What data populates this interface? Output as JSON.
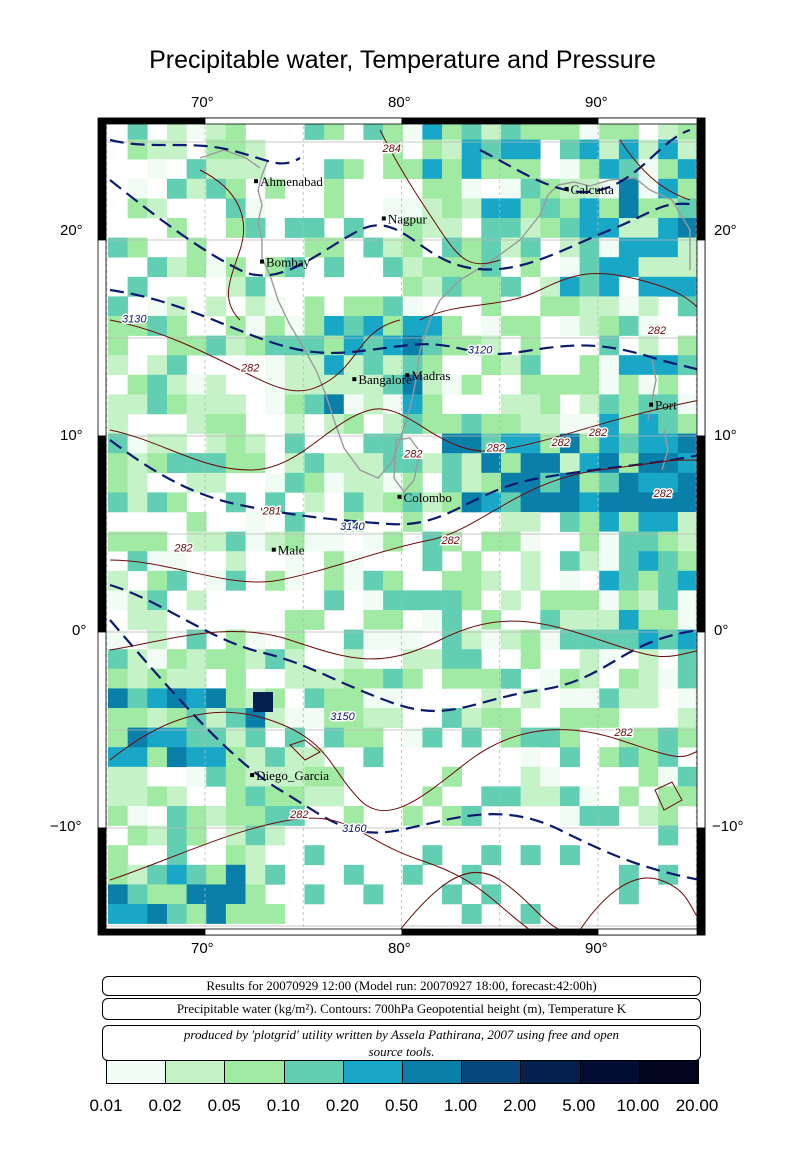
{
  "title": "Precipitable water, Temperature and Pressure",
  "axes": {
    "lon_labels": [
      "70°",
      "80°",
      "90°"
    ],
    "lat_labels": [
      "20°",
      "10°",
      "0°",
      "−10°"
    ]
  },
  "cities": [
    {
      "name": "Ahmenabad",
      "lon": 72.6,
      "lat": 23.0
    },
    {
      "name": "Nagpur",
      "lon": 79.1,
      "lat": 21.1
    },
    {
      "name": "Calcutta",
      "lon": 88.4,
      "lat": 22.6
    },
    {
      "name": "Bombay",
      "lon": 72.9,
      "lat": 18.9
    },
    {
      "name": "Bangalore",
      "lon": 77.6,
      "lat": 12.9
    },
    {
      "name": "Madras",
      "lon": 80.3,
      "lat": 13.1
    },
    {
      "name": "Port",
      "lon": 92.7,
      "lat": 11.6
    },
    {
      "name": "Colombo",
      "lon": 79.9,
      "lat": 6.9
    },
    {
      "name": "Male",
      "lon": 73.5,
      "lat": 4.2
    },
    {
      "name": "Diego_Garcia",
      "lon": 72.4,
      "lat": -7.3
    }
  ],
  "contour_labels": [
    {
      "text": "3130",
      "lon": 66.4,
      "lat": 15.8
    },
    {
      "text": "3120",
      "lon": 84.0,
      "lat": 14.2
    },
    {
      "text": "3140",
      "lon": 77.5,
      "lat": 5.2
    },
    {
      "text": "3150",
      "lon": 77.0,
      "lat": -4.5
    },
    {
      "text": "3160",
      "lon": 77.6,
      "lat": -10.2
    },
    {
      "text": "282",
      "lon": 80.6,
      "lat": 8.9
    },
    {
      "text": "282",
      "lon": 84.8,
      "lat": 9.2
    },
    {
      "text": "282",
      "lon": 88.1,
      "lat": 9.5
    },
    {
      "text": "282",
      "lon": 90.0,
      "lat": 10.0
    },
    {
      "text": "282",
      "lon": 93.0,
      "lat": 15.2
    },
    {
      "text": "282",
      "lon": 93.3,
      "lat": 6.9
    },
    {
      "text": "282",
      "lon": 82.5,
      "lat": 4.5
    },
    {
      "text": "282",
      "lon": 68.9,
      "lat": 4.1
    },
    {
      "text": "282",
      "lon": 91.3,
      "lat": -5.3
    },
    {
      "text": "282",
      "lon": 74.8,
      "lat": -9.5
    },
    {
      "text": "282",
      "lon": 72.3,
      "lat": 13.3
    },
    {
      "text": "284",
      "lon": 79.5,
      "lat": 24.5
    },
    {
      "text": "281",
      "lon": 73.4,
      "lat": 6.0
    }
  ],
  "info": {
    "line1": "Results for 20070929 12:00 (Model run: 20070927 18:00, forecast:42:00h)",
    "line2": "Precipitable water (kg/m²).  Contours: 700hPa Geopotential height (m), Temperature K",
    "line3a": "produced by 'plotgrid' utility written by Assela Pathirana, 2007 using free and open",
    "line3b": "source tools."
  },
  "legend": {
    "colors": [
      "#f0fcf4",
      "#c5f3c7",
      "#a1eaa3",
      "#62cfb3",
      "#19a7c8",
      "#0a7faa",
      "#06487c",
      "#05204f",
      "#030c33",
      "#02061c"
    ],
    "ticks": [
      "0.01",
      "0.02",
      "0.05",
      "0.10",
      "0.20",
      "0.50",
      "1.00",
      "2.00",
      "5.00",
      "10.00",
      "20.00"
    ]
  },
  "colors": {
    "height_contour": "#0b1a6e",
    "temperature_contour": "#6b0a0a",
    "coastline": "#9a9a9a",
    "grid": "#b8b8b8"
  }
}
